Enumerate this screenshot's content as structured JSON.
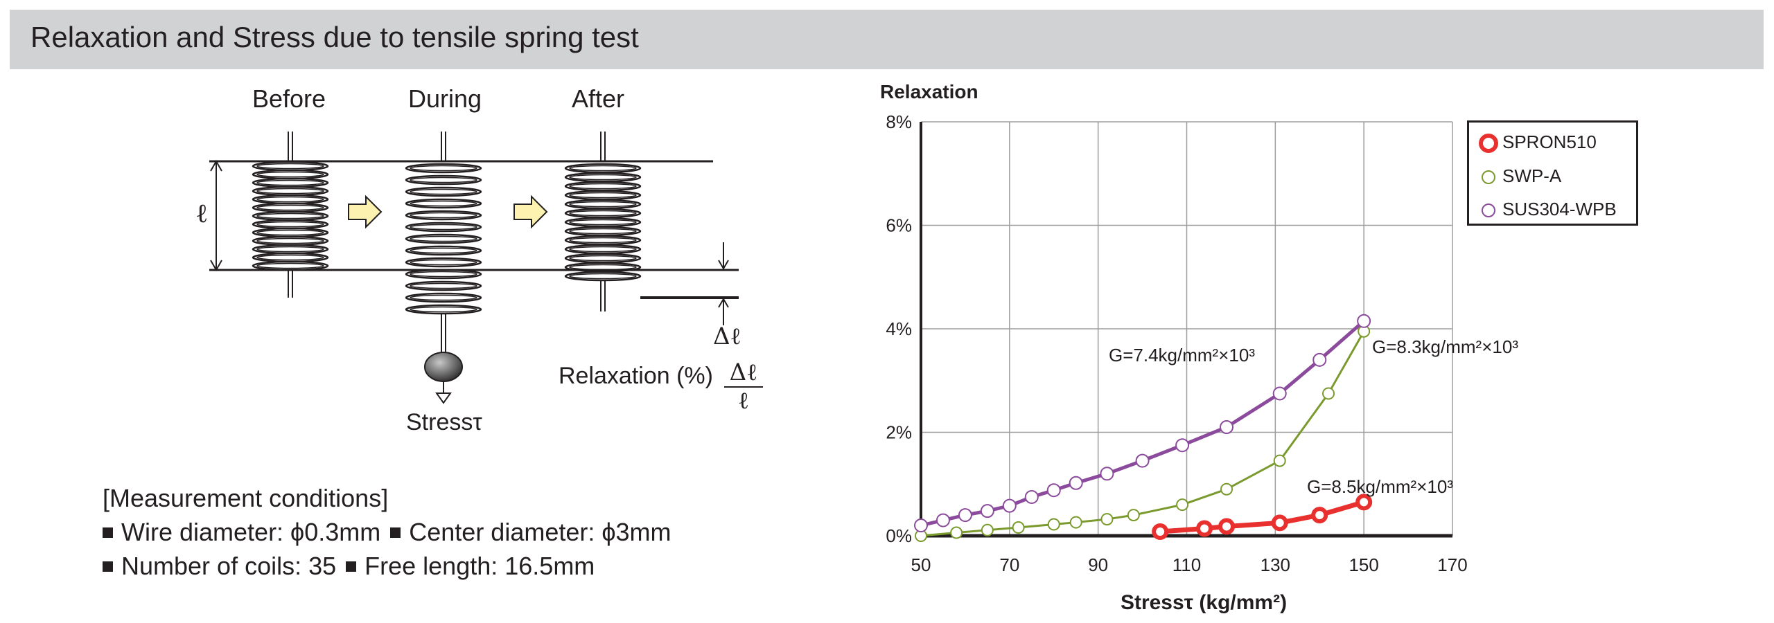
{
  "header": {
    "title": "Relaxation and Stress due to tensile spring test"
  },
  "diagram": {
    "stages": [
      "Before",
      "During",
      "After"
    ],
    "length_symbol": "ℓ",
    "delta_symbol": "Δℓ",
    "stress_label": "Stressτ",
    "formula_label": "Relaxation (%)",
    "formula_numerator": "Δℓ",
    "formula_denominator": "ℓ"
  },
  "conditions": {
    "heading": "[Measurement conditions]",
    "line1": [
      "Wire diameter: ϕ0.3mm",
      "Center diameter: ϕ3mm"
    ],
    "line2": [
      "Number of coils: 35",
      "Free length: 16.5mm"
    ]
  },
  "colors": {
    "header_bg": "#d1d2d4",
    "spron": "#e8312f",
    "swp": "#7a9a2e",
    "sus": "#8b4a9c",
    "grid": "#9d9d9d"
  },
  "chart_data": {
    "type": "line",
    "ylabel": "Relaxation",
    "xlabel": "Stressτ (kg/mm²)",
    "xlim": [
      50,
      170
    ],
    "ylim": [
      0,
      8
    ],
    "x_ticks": [
      "50",
      "70",
      "90",
      "110",
      "130",
      "150",
      "170"
    ],
    "y_ticks": [
      "0%",
      "2%",
      "4%",
      "6%",
      "8%"
    ],
    "grid": true,
    "legend_position": "top-right",
    "series": [
      {
        "name": "SPRON510",
        "color": "#e8312f",
        "x": [
          104,
          114,
          119,
          131,
          140,
          150
        ],
        "y": [
          0.08,
          0.14,
          0.18,
          0.25,
          0.4,
          0.65
        ]
      },
      {
        "name": "SWP-A",
        "color": "#7a9a2e",
        "x": [
          50,
          58,
          65,
          72,
          80,
          85,
          92,
          98,
          109,
          119,
          131,
          142,
          150
        ],
        "y": [
          0.0,
          0.06,
          0.11,
          0.16,
          0.22,
          0.26,
          0.32,
          0.4,
          0.6,
          0.9,
          1.45,
          2.75,
          3.95
        ]
      },
      {
        "name": "SUS304-WPB",
        "color": "#8b4a9c",
        "x": [
          50,
          55,
          60,
          65,
          70,
          75,
          80,
          85,
          92,
          100,
          109,
          119,
          131,
          140,
          150
        ],
        "y": [
          0.2,
          0.3,
          0.4,
          0.48,
          0.58,
          0.75,
          0.88,
          1.02,
          1.2,
          1.45,
          1.75,
          2.1,
          2.75,
          3.4,
          4.15
        ]
      }
    ],
    "annotations": [
      {
        "text": "G=7.4kg/mm²×10³",
        "series": "SUS304-WPB"
      },
      {
        "text": "G=8.3kg/mm²×10³",
        "series": "SWP-A"
      },
      {
        "text": "G=8.5kg/mm²×10³",
        "series": "SPRON510"
      }
    ]
  }
}
